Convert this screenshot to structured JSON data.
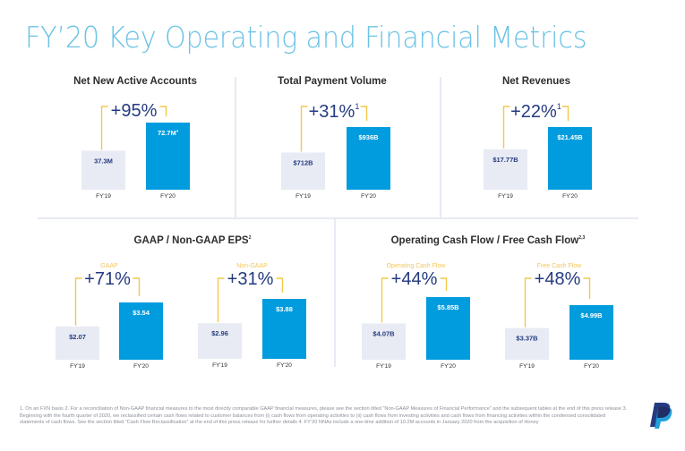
{
  "page": {
    "title": "FY’20 Key Operating and Financial Metrics",
    "footnote": "1. On an FXN basis    2. For a reconciliation of Non-GAAP financial measures to the most directly comparable GAAP financial measures, please see the section titled “Non-GAAP Measures of Financial Performance” and the subsequent tables at the end of this press release    3. Beginning with the fourth quarter of 2020, we reclassified certain cash flows related to customer balances from (i) cash flows from operating activities to (ii) cash flows from investing activities and cash flows from financing activities within the condensed consolidated statements of cash flows. See the section titled “Cash Flow Reclassification” at the end of this press release for further details    4. FY’20 NNAs include a one-time addition of 10.2M accounts in January 2020 from the acquisition of Honey",
    "logo": "paypal-logo",
    "colors": {
      "title": "#6cc3e6",
      "fy19_bar": "#e8ebf3",
      "fy20_bar": "#009cde",
      "bracket": "#f2c94c",
      "growth_text": "#253b80",
      "sub_label": "#f4c75a",
      "heading": "#2c2e2f",
      "divider": "#e1e4ee"
    }
  },
  "chart_data": [
    {
      "type": "bar",
      "title": "Net New Active Accounts",
      "title_superscript": "",
      "categories": [
        "FY'19",
        "FY'20"
      ],
      "values": [
        37.3,
        72.7
      ],
      "value_labels": [
        "37.3M",
        "72.7M"
      ],
      "value_label_superscripts": [
        "",
        "4"
      ],
      "growth": "+95%",
      "growth_superscript": "",
      "sub_label": "",
      "unit": "M"
    },
    {
      "type": "bar",
      "title": "Total Payment Volume",
      "title_superscript": "",
      "categories": [
        "FY'19",
        "FY'20"
      ],
      "values": [
        712,
        936
      ],
      "value_labels": [
        "$712B",
        "$936B"
      ],
      "value_label_superscripts": [
        "",
        ""
      ],
      "growth": "+31%",
      "growth_superscript": "1",
      "sub_label": "",
      "unit": "$B"
    },
    {
      "type": "bar",
      "title": "Net Revenues",
      "title_superscript": "",
      "categories": [
        "FY'19",
        "FY'20"
      ],
      "values": [
        17.77,
        21.45
      ],
      "value_labels": [
        "$17.77B",
        "$21.45B"
      ],
      "value_label_superscripts": [
        "",
        ""
      ],
      "growth": "+22%",
      "growth_superscript": "1",
      "sub_label": "",
      "unit": "$B"
    },
    {
      "type": "bar",
      "title": "GAAP / Non-GAAP EPS",
      "title_superscript": "2",
      "categories": [
        "FY'19",
        "FY'20"
      ],
      "values": [
        2.07,
        3.54
      ],
      "value_labels": [
        "$2.07",
        "$3.54"
      ],
      "value_label_superscripts": [
        "",
        ""
      ],
      "growth": "+71%",
      "growth_superscript": "",
      "sub_label": "GAAP",
      "unit": "$"
    },
    {
      "type": "bar",
      "title": "",
      "title_superscript": "",
      "categories": [
        "FY'19",
        "FY'20"
      ],
      "values": [
        2.96,
        3.88
      ],
      "value_labels": [
        "$2.96",
        "$3.88"
      ],
      "value_label_superscripts": [
        "",
        ""
      ],
      "growth": "+31%",
      "growth_superscript": "",
      "sub_label": "Non-GAAP",
      "unit": "$"
    },
    {
      "type": "bar",
      "title": "Operating Cash Flow / Free Cash Flow",
      "title_superscript": "2,3",
      "categories": [
        "FY'19",
        "FY'20"
      ],
      "values": [
        4.07,
        5.85
      ],
      "value_labels": [
        "$4.07B",
        "$5.85B"
      ],
      "value_label_superscripts": [
        "",
        ""
      ],
      "growth": "+44%",
      "growth_superscript": "",
      "sub_label": "Operating Cash Flow",
      "unit": "$B"
    },
    {
      "type": "bar",
      "title": "",
      "title_superscript": "",
      "categories": [
        "FY'19",
        "FY'20"
      ],
      "values": [
        3.37,
        4.99
      ],
      "value_labels": [
        "$3.37B",
        "$4.99B"
      ],
      "value_label_superscripts": [
        "",
        ""
      ],
      "growth": "+48%",
      "growth_superscript": "",
      "sub_label": "Free Cash Flow",
      "unit": "$B"
    }
  ]
}
